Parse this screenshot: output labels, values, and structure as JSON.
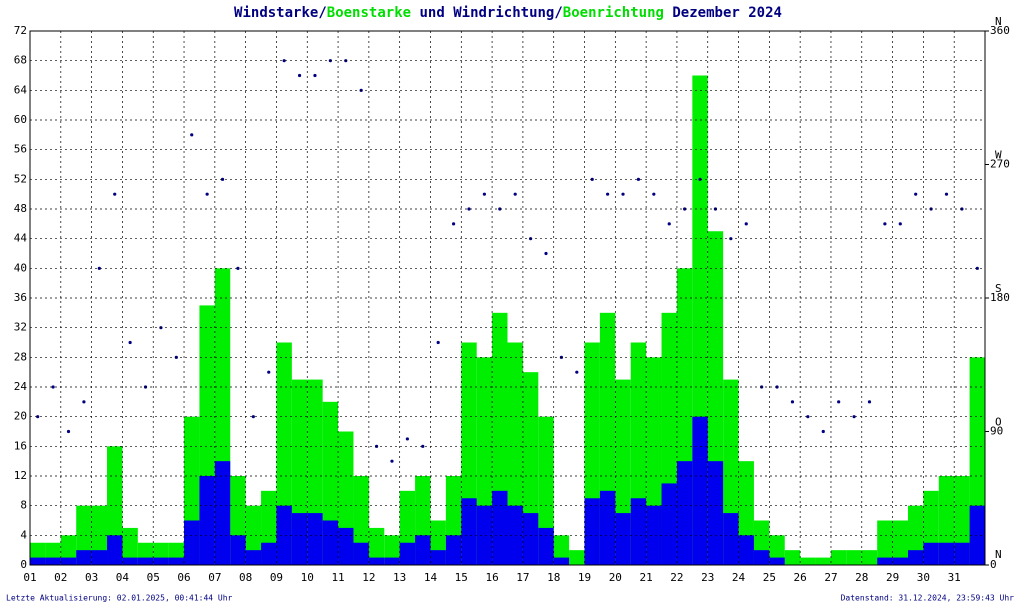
{
  "chart_data": {
    "type": "bar",
    "title_parts": [
      {
        "text": "Windstarke",
        "color": "#000080"
      },
      {
        "text": "/",
        "color": "#000080"
      },
      {
        "text": "Boenstarke",
        "color": "#00dd00"
      },
      {
        "text": " und Windrichtung",
        "color": "#000080"
      },
      {
        "text": "/",
        "color": "#000080"
      },
      {
        "text": "Boenrichtung",
        "color": "#00dd00"
      },
      {
        "text": " Dezember 2024",
        "color": "#000080"
      }
    ],
    "footer_left": "Letzte Aktualisierung: 02.01.2025, 00:41:44 Uhr",
    "footer_right": "Datenstand: 31.12.2024, 23:59:43 Uhr",
    "x": [
      1.25,
      1.75,
      2.25,
      2.75,
      3.25,
      3.75,
      4.25,
      4.75,
      5.25,
      5.75,
      6.25,
      6.75,
      7.25,
      7.75,
      8.25,
      8.75,
      9.25,
      9.75,
      10.25,
      10.75,
      11.25,
      11.75,
      12.25,
      12.75,
      13.25,
      13.75,
      14.25,
      14.75,
      15.25,
      15.75,
      16.25,
      16.75,
      17.25,
      17.75,
      18.25,
      18.75,
      19.25,
      19.75,
      20.25,
      20.75,
      21.25,
      21.75,
      22.25,
      22.75,
      23.25,
      23.75,
      24.25,
      24.75,
      25.25,
      25.75,
      26.25,
      26.75,
      27.25,
      27.75,
      28.25,
      28.75,
      29.25,
      29.75,
      30.25,
      30.75,
      31.25,
      31.75
    ],
    "xlim": [
      1,
      32
    ],
    "xticks": [
      {
        "value": 1,
        "label": "01"
      },
      {
        "value": 2,
        "label": "02"
      },
      {
        "value": 3,
        "label": "03"
      },
      {
        "value": 4,
        "label": "04"
      },
      {
        "value": 5,
        "label": "05"
      },
      {
        "value": 6,
        "label": "06"
      },
      {
        "value": 7,
        "label": "07"
      },
      {
        "value": 8,
        "label": "08"
      },
      {
        "value": 9,
        "label": "09"
      },
      {
        "value": 10,
        "label": "10"
      },
      {
        "value": 11,
        "label": "11"
      },
      {
        "value": 12,
        "label": "12"
      },
      {
        "value": 13,
        "label": "13"
      },
      {
        "value": 14,
        "label": "14"
      },
      {
        "value": 15,
        "label": "15"
      },
      {
        "value": 16,
        "label": "16"
      },
      {
        "value": 17,
        "label": "17"
      },
      {
        "value": 18,
        "label": "18"
      },
      {
        "value": 19,
        "label": "19"
      },
      {
        "value": 20,
        "label": "20"
      },
      {
        "value": 21,
        "label": "21"
      },
      {
        "value": 22,
        "label": "22"
      },
      {
        "value": 23,
        "label": "23"
      },
      {
        "value": 24,
        "label": "24"
      },
      {
        "value": 25,
        "label": "25"
      },
      {
        "value": 26,
        "label": "26"
      },
      {
        "value": 27,
        "label": "27"
      },
      {
        "value": 28,
        "label": "28"
      },
      {
        "value": 29,
        "label": "29"
      },
      {
        "value": 30,
        "label": "30"
      },
      {
        "value": 31,
        "label": "31"
      }
    ],
    "ylim": [
      0,
      72
    ],
    "yticks": [
      0,
      4,
      8,
      12,
      16,
      20,
      24,
      28,
      32,
      36,
      40,
      44,
      48,
      52,
      56,
      60,
      64,
      68,
      72
    ],
    "y2lim": [
      0,
      360
    ],
    "y2ticks": [
      0,
      90,
      180,
      270,
      360
    ],
    "y2tick_letters": [
      "N",
      "O",
      "S",
      "W",
      "N"
    ],
    "grid": true,
    "series": [
      {
        "name": "Boenstarke",
        "color": "#00ee00",
        "values": [
          3,
          3,
          4,
          8,
          8,
          16,
          5,
          3,
          3,
          3,
          20,
          35,
          40,
          12,
          8,
          10,
          30,
          25,
          25,
          22,
          18,
          12,
          5,
          4,
          10,
          12,
          6,
          12,
          30,
          28,
          34,
          30,
          26,
          20,
          4,
          2,
          30,
          34,
          25,
          30,
          28,
          34,
          40,
          66,
          45,
          25,
          14,
          6,
          4,
          2,
          1,
          1,
          2,
          2,
          2,
          6,
          6,
          8,
          10,
          12,
          12,
          28
        ]
      },
      {
        "name": "Windstarke",
        "color": "#0000ee",
        "values": [
          1,
          1,
          1,
          2,
          2,
          4,
          1,
          1,
          1,
          1,
          6,
          12,
          14,
          4,
          2,
          3,
          8,
          7,
          7,
          6,
          5,
          3,
          1,
          1,
          3,
          4,
          2,
          4,
          9,
          8,
          10,
          8,
          7,
          5,
          1,
          0,
          9,
          10,
          7,
          9,
          8,
          11,
          14,
          20,
          14,
          7,
          4,
          2,
          1,
          0,
          0,
          0,
          0,
          0,
          0,
          1,
          1,
          2,
          3,
          3,
          3,
          8
        ]
      },
      {
        "name": "Windrichtung",
        "color": "#000080",
        "axis": "y2",
        "values": [
          100,
          120,
          90,
          110,
          200,
          250,
          150,
          120,
          160,
          140,
          290,
          250,
          260,
          200,
          100,
          130,
          340,
          330,
          330,
          340,
          340,
          320,
          80,
          70,
          85,
          80,
          150,
          230,
          240,
          250,
          240,
          250,
          220,
          210,
          140,
          130,
          260,
          250,
          250,
          260,
          250,
          230,
          240,
          260,
          240,
          220,
          230,
          120,
          120,
          110,
          100,
          90,
          110,
          100,
          110,
          230,
          230,
          250,
          240,
          250,
          240,
          200
        ]
      }
    ]
  }
}
